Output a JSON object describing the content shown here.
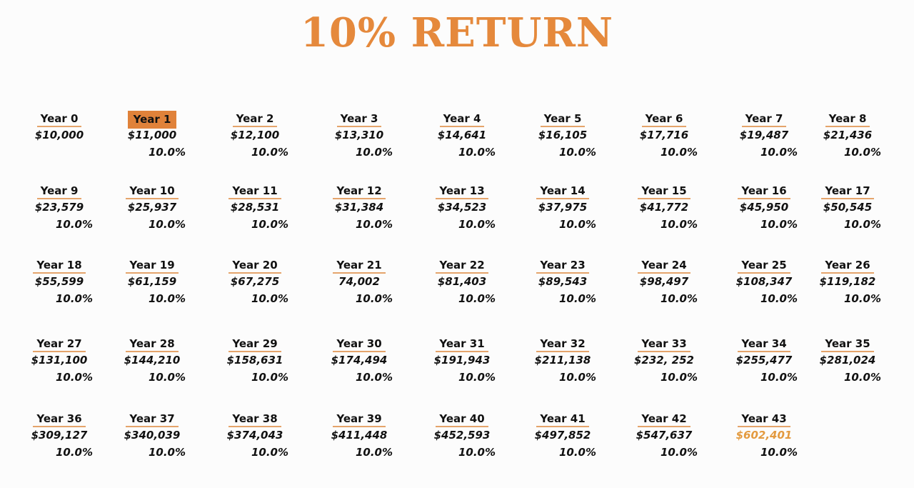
{
  "title": "10% RETURN",
  "colors": {
    "accent": "#e5893c",
    "highlight_bg": "#e0823a",
    "final_value": "#e39a3f",
    "text": "#111111"
  },
  "highlighted_year": 1,
  "final_highlight_year": 43,
  "years": [
    {
      "label": "Year 0",
      "amount": "$10,000",
      "pct": ""
    },
    {
      "label": "Year 1",
      "amount": "$11,000",
      "pct": "10.0%"
    },
    {
      "label": "Year 2",
      "amount": "$12,100",
      "pct": "10.0%"
    },
    {
      "label": "Year 3",
      "amount": "$13,310",
      "pct": "10.0%"
    },
    {
      "label": "Year 4",
      "amount": "$14,641",
      "pct": "10.0%"
    },
    {
      "label": "Year 5",
      "amount": "$16,105",
      "pct": "10.0%"
    },
    {
      "label": "Year 6",
      "amount": "$17,716",
      "pct": "10.0%"
    },
    {
      "label": "Year 7",
      "amount": "$19,487",
      "pct": "10.0%"
    },
    {
      "label": "Year 8",
      "amount": "$21,436",
      "pct": "10.0%"
    },
    {
      "label": "Year 9",
      "amount": "$23,579",
      "pct": "10.0%"
    },
    {
      "label": "Year 10",
      "amount": "$25,937",
      "pct": "10.0%"
    },
    {
      "label": "Year 11",
      "amount": "$28,531",
      "pct": "10.0%"
    },
    {
      "label": "Year 12",
      "amount": "$31,384",
      "pct": "10.0%"
    },
    {
      "label": "Year 13",
      "amount": "$34,523",
      "pct": "10.0%"
    },
    {
      "label": "Year 14",
      "amount": "$37,975",
      "pct": "10.0%"
    },
    {
      "label": "Year 15",
      "amount": "$41,772",
      "pct": "10.0%"
    },
    {
      "label": "Year 16",
      "amount": "$45,950",
      "pct": "10.0%"
    },
    {
      "label": "Year 17",
      "amount": "$50,545",
      "pct": "10.0%"
    },
    {
      "label": "Year 18",
      "amount": "$55,599",
      "pct": "10.0%"
    },
    {
      "label": "Year 19",
      "amount": "$61,159",
      "pct": "10.0%"
    },
    {
      "label": "Year 20",
      "amount": "$67,275",
      "pct": "10.0%"
    },
    {
      "label": "Year 21",
      "amount": "74,002",
      "pct": "10.0%"
    },
    {
      "label": "Year 22",
      "amount": "$81,403",
      "pct": "10.0%"
    },
    {
      "label": "Year 23",
      "amount": "$89,543",
      "pct": "10.0%"
    },
    {
      "label": "Year 24",
      "amount": "$98,497",
      "pct": "10.0%"
    },
    {
      "label": "Year 25",
      "amount": "$108,347",
      "pct": "10.0%"
    },
    {
      "label": "Year 26",
      "amount": "$119,182",
      "pct": "10.0%"
    },
    {
      "label": "Year 27",
      "amount": "$131,100",
      "pct": "10.0%"
    },
    {
      "label": "Year 28",
      "amount": "$144,210",
      "pct": "10.0%"
    },
    {
      "label": "Year 29",
      "amount": "$158,631",
      "pct": "10.0%"
    },
    {
      "label": "Year 30",
      "amount": "$174,494",
      "pct": "10.0%"
    },
    {
      "label": "Year 31",
      "amount": "$191,943",
      "pct": "10.0%"
    },
    {
      "label": "Year 32",
      "amount": "$211,138",
      "pct": "10.0%"
    },
    {
      "label": "Year 33",
      "amount": "$232, 252",
      "pct": "10.0%"
    },
    {
      "label": "Year 34",
      "amount": "$255,477",
      "pct": "10.0%"
    },
    {
      "label": "Year 35",
      "amount": "$281,024",
      "pct": "10.0%"
    },
    {
      "label": "Year 36",
      "amount": "$309,127",
      "pct": "10.0%"
    },
    {
      "label": "Year 37",
      "amount": "$340,039",
      "pct": "10.0%"
    },
    {
      "label": "Year 38",
      "amount": "$374,043",
      "pct": "10.0%"
    },
    {
      "label": "Year 39",
      "amount": "$411,448",
      "pct": "10.0%"
    },
    {
      "label": "Year 40",
      "amount": "$452,593",
      "pct": "10.0%"
    },
    {
      "label": "Year 41",
      "amount": "$497,852",
      "pct": "10.0%"
    },
    {
      "label": "Year 42",
      "amount": "$547,637",
      "pct": "10.0%"
    },
    {
      "label": "Year 43",
      "amount": "$602,401",
      "pct": "10.0%"
    }
  ]
}
